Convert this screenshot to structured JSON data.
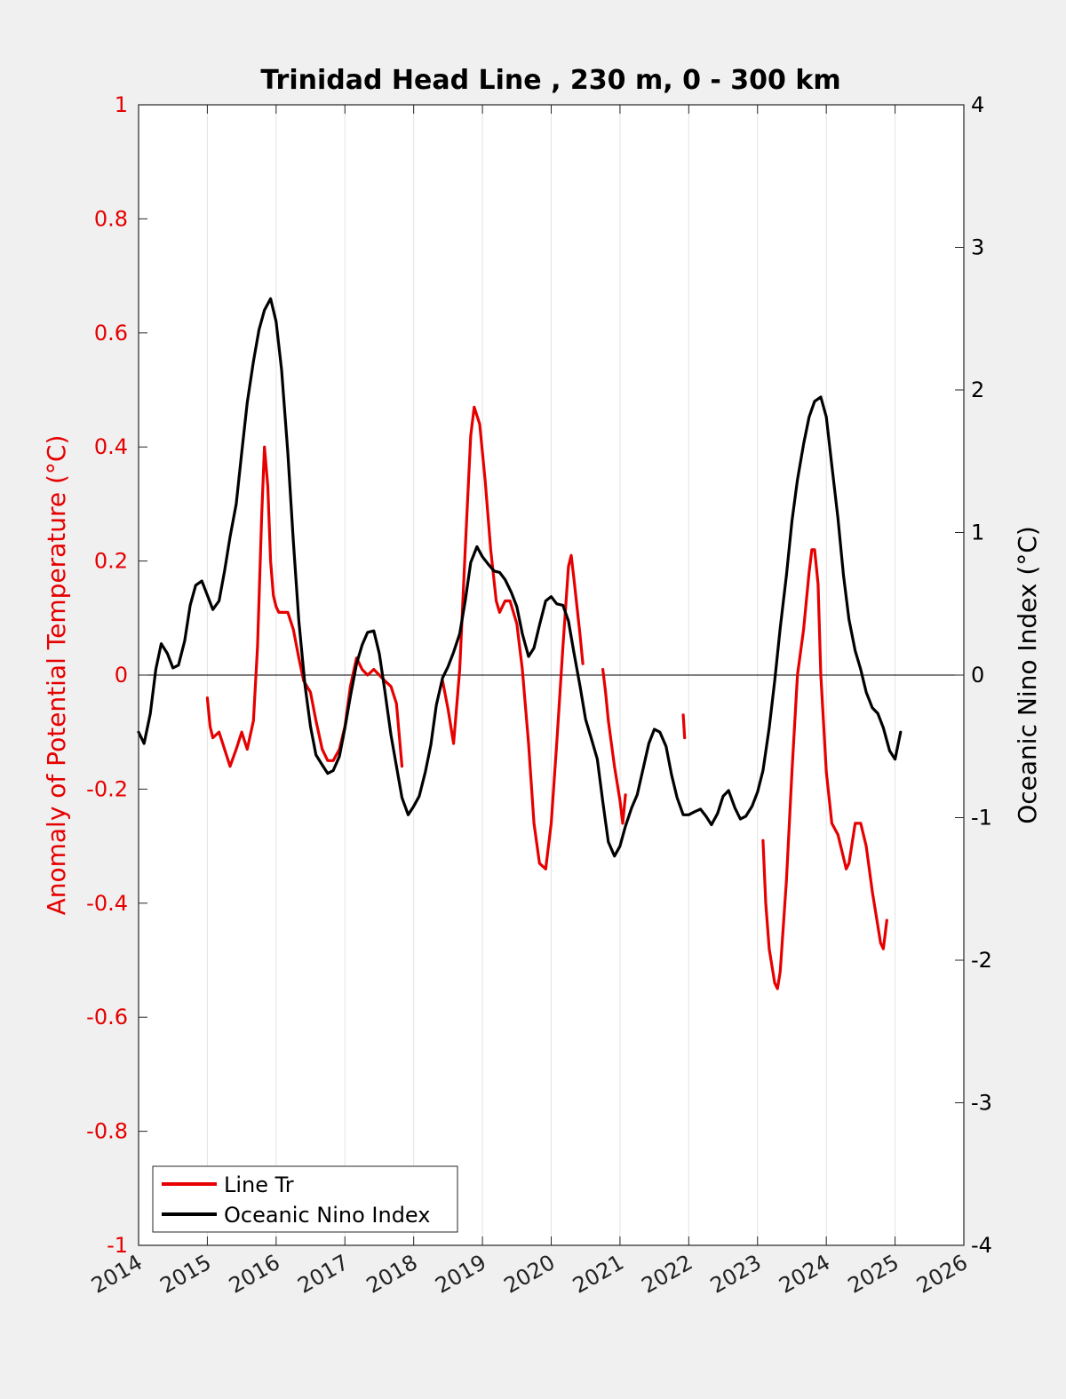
{
  "chart_data": {
    "type": "line",
    "title": "Trinidad Head Line , 230 m, 0 - 300 km",
    "xlabel": "",
    "ylabel_left": "Anomaly of Potential Temperature (°C)",
    "ylabel_right": "Oceanic Nino Index (°C)",
    "xlim": [
      2014,
      2026
    ],
    "ylim_left": [
      -1,
      1
    ],
    "ylim_right": [
      -4,
      4
    ],
    "x_ticks": [
      "2014",
      "2015",
      "2016",
      "2017",
      "2018",
      "2019",
      "2020",
      "2021",
      "2022",
      "2023",
      "2024",
      "2025",
      "2026"
    ],
    "y_ticks_left": [
      "1",
      "0.8",
      "0.6",
      "0.4",
      "0.2",
      "0",
      "-0.2",
      "-0.4",
      "-0.6",
      "-0.8",
      "-1"
    ],
    "y_ticks_right": [
      "4",
      "3",
      "2",
      "1",
      "0",
      "-1",
      "-2",
      "-3",
      "-4"
    ],
    "grid": "vertical",
    "legend_position": "bottom-left",
    "colors": {
      "line_tr": "#e60000",
      "oni": "#000000"
    },
    "series": [
      {
        "name": "Line Tr",
        "axis": "left",
        "segments": [
          [
            [
              2015.0,
              -0.04
            ],
            [
              2015.04,
              -0.09
            ],
            [
              2015.08,
              -0.11
            ],
            [
              2015.17,
              -0.1
            ],
            [
              2015.25,
              -0.13
            ],
            [
              2015.33,
              -0.16
            ],
            [
              2015.42,
              -0.13
            ],
            [
              2015.5,
              -0.1
            ],
            [
              2015.58,
              -0.13
            ],
            [
              2015.67,
              -0.08
            ],
            [
              2015.73,
              0.05
            ],
            [
              2015.79,
              0.28
            ],
            [
              2015.83,
              0.4
            ],
            [
              2015.88,
              0.33
            ],
            [
              2015.92,
              0.2
            ],
            [
              2015.96,
              0.14
            ],
            [
              2016.0,
              0.12
            ],
            [
              2016.04,
              0.11
            ],
            [
              2016.17,
              0.11
            ],
            [
              2016.25,
              0.08
            ],
            [
              2016.33,
              0.03
            ],
            [
              2016.4,
              -0.01
            ],
            [
              2016.5,
              -0.03
            ],
            [
              2016.58,
              -0.08
            ],
            [
              2016.67,
              -0.13
            ],
            [
              2016.75,
              -0.15
            ],
            [
              2016.83,
              -0.15
            ],
            [
              2016.92,
              -0.13
            ],
            [
              2017.0,
              -0.09
            ],
            [
              2017.08,
              -0.02
            ],
            [
              2017.17,
              0.03
            ],
            [
              2017.25,
              0.01
            ],
            [
              2017.33,
              0.0
            ],
            [
              2017.42,
              0.01
            ],
            [
              2017.5,
              0.0
            ],
            [
              2017.58,
              -0.01
            ],
            [
              2017.67,
              -0.02
            ],
            [
              2017.75,
              -0.05
            ],
            [
              2017.83,
              -0.16
            ]
          ],
          [
            [
              2018.42,
              -0.01
            ],
            [
              2018.5,
              -0.06
            ],
            [
              2018.58,
              -0.12
            ],
            [
              2018.67,
              0.01
            ],
            [
              2018.75,
              0.22
            ],
            [
              2018.83,
              0.42
            ],
            [
              2018.88,
              0.47
            ],
            [
              2018.96,
              0.44
            ],
            [
              2019.04,
              0.34
            ],
            [
              2019.12,
              0.22
            ],
            [
              2019.2,
              0.13
            ],
            [
              2019.25,
              0.11
            ],
            [
              2019.33,
              0.13
            ],
            [
              2019.4,
              0.13
            ],
            [
              2019.5,
              0.09
            ],
            [
              2019.58,
              0.01
            ],
            [
              2019.67,
              -0.12
            ],
            [
              2019.75,
              -0.26
            ],
            [
              2019.83,
              -0.33
            ],
            [
              2019.92,
              -0.34
            ],
            [
              2020.0,
              -0.26
            ],
            [
              2020.08,
              -0.12
            ],
            [
              2020.17,
              0.05
            ],
            [
              2020.25,
              0.19
            ],
            [
              2020.29,
              0.21
            ],
            [
              2020.33,
              0.17
            ],
            [
              2020.42,
              0.07
            ],
            [
              2020.46,
              0.02
            ]
          ],
          [
            [
              2020.75,
              0.01
            ],
            [
              2020.79,
              -0.03
            ],
            [
              2020.83,
              -0.08
            ],
            [
              2020.92,
              -0.16
            ],
            [
              2021.0,
              -0.22
            ],
            [
              2021.04,
              -0.26
            ],
            [
              2021.08,
              -0.21
            ]
          ],
          [
            [
              2021.92,
              -0.07
            ],
            [
              2021.94,
              -0.11
            ]
          ],
          [
            [
              2023.08,
              -0.29
            ],
            [
              2023.12,
              -0.4
            ],
            [
              2023.17,
              -0.48
            ],
            [
              2023.25,
              -0.54
            ],
            [
              2023.29,
              -0.55
            ],
            [
              2023.33,
              -0.52
            ],
            [
              2023.42,
              -0.36
            ],
            [
              2023.5,
              -0.17
            ],
            [
              2023.58,
              0.0
            ],
            [
              2023.67,
              0.08
            ],
            [
              2023.75,
              0.18
            ],
            [
              2023.79,
              0.22
            ],
            [
              2023.83,
              0.22
            ],
            [
              2023.88,
              0.16
            ],
            [
              2023.92,
              0.0
            ],
            [
              2024.0,
              -0.17
            ],
            [
              2024.08,
              -0.26
            ],
            [
              2024.17,
              -0.28
            ],
            [
              2024.25,
              -0.32
            ],
            [
              2024.29,
              -0.34
            ],
            [
              2024.33,
              -0.33
            ],
            [
              2024.42,
              -0.26
            ],
            [
              2024.5,
              -0.26
            ],
            [
              2024.58,
              -0.3
            ],
            [
              2024.67,
              -0.38
            ],
            [
              2024.75,
              -0.44
            ],
            [
              2024.79,
              -0.47
            ],
            [
              2024.83,
              -0.48
            ],
            [
              2024.88,
              -0.43
            ]
          ]
        ]
      },
      {
        "name": "Oceanic Nino Index",
        "axis": "right",
        "segments": [
          [
            [
              2014.0,
              -0.4
            ],
            [
              2014.08,
              -0.48
            ],
            [
              2014.17,
              -0.27
            ],
            [
              2014.25,
              0.04
            ],
            [
              2014.33,
              0.22
            ],
            [
              2014.42,
              0.15
            ],
            [
              2014.5,
              0.05
            ],
            [
              2014.58,
              0.07
            ],
            [
              2014.67,
              0.24
            ],
            [
              2014.75,
              0.49
            ],
            [
              2014.83,
              0.63
            ],
            [
              2014.92,
              0.66
            ],
            [
              2015.0,
              0.56
            ],
            [
              2015.08,
              0.46
            ],
            [
              2015.17,
              0.52
            ],
            [
              2015.25,
              0.73
            ],
            [
              2015.33,
              0.97
            ],
            [
              2015.42,
              1.2
            ],
            [
              2015.5,
              1.56
            ],
            [
              2015.58,
              1.91
            ],
            [
              2015.67,
              2.2
            ],
            [
              2015.75,
              2.42
            ],
            [
              2015.83,
              2.56
            ],
            [
              2015.92,
              2.64
            ],
            [
              2016.0,
              2.48
            ],
            [
              2016.08,
              2.14
            ],
            [
              2016.17,
              1.56
            ],
            [
              2016.25,
              0.94
            ],
            [
              2016.33,
              0.38
            ],
            [
              2016.42,
              -0.07
            ],
            [
              2016.5,
              -0.36
            ],
            [
              2016.58,
              -0.56
            ],
            [
              2016.67,
              -0.63
            ],
            [
              2016.75,
              -0.69
            ],
            [
              2016.83,
              -0.67
            ],
            [
              2016.92,
              -0.57
            ],
            [
              2017.0,
              -0.37
            ],
            [
              2017.08,
              -0.15
            ],
            [
              2017.17,
              0.08
            ],
            [
              2017.25,
              0.21
            ],
            [
              2017.33,
              0.3
            ],
            [
              2017.42,
              0.31
            ],
            [
              2017.5,
              0.15
            ],
            [
              2017.58,
              -0.11
            ],
            [
              2017.67,
              -0.42
            ],
            [
              2017.75,
              -0.64
            ],
            [
              2017.83,
              -0.86
            ],
            [
              2017.92,
              -0.98
            ],
            [
              2018.0,
              -0.92
            ],
            [
              2018.08,
              -0.85
            ],
            [
              2018.17,
              -0.68
            ],
            [
              2018.25,
              -0.49
            ],
            [
              2018.33,
              -0.21
            ],
            [
              2018.42,
              -0.02
            ],
            [
              2018.5,
              0.06
            ],
            [
              2018.58,
              0.16
            ],
            [
              2018.67,
              0.29
            ],
            [
              2018.75,
              0.52
            ],
            [
              2018.83,
              0.79
            ],
            [
              2018.92,
              0.9
            ],
            [
              2019.0,
              0.83
            ],
            [
              2019.08,
              0.78
            ],
            [
              2019.17,
              0.73
            ],
            [
              2019.25,
              0.72
            ],
            [
              2019.33,
              0.67
            ],
            [
              2019.42,
              0.58
            ],
            [
              2019.5,
              0.48
            ],
            [
              2019.58,
              0.29
            ],
            [
              2019.67,
              0.13
            ],
            [
              2019.75,
              0.19
            ],
            [
              2019.83,
              0.35
            ],
            [
              2019.92,
              0.52
            ],
            [
              2020.0,
              0.55
            ],
            [
              2020.08,
              0.5
            ],
            [
              2020.17,
              0.49
            ],
            [
              2020.25,
              0.38
            ],
            [
              2020.33,
              0.16
            ],
            [
              2020.42,
              -0.08
            ],
            [
              2020.5,
              -0.31
            ],
            [
              2020.58,
              -0.44
            ],
            [
              2020.67,
              -0.59
            ],
            [
              2020.75,
              -0.89
            ],
            [
              2020.83,
              -1.17
            ],
            [
              2020.92,
              -1.27
            ],
            [
              2021.0,
              -1.2
            ],
            [
              2021.08,
              -1.06
            ],
            [
              2021.17,
              -0.93
            ],
            [
              2021.25,
              -0.84
            ],
            [
              2021.33,
              -0.67
            ],
            [
              2021.42,
              -0.48
            ],
            [
              2021.5,
              -0.38
            ],
            [
              2021.58,
              -0.4
            ],
            [
              2021.67,
              -0.5
            ],
            [
              2021.75,
              -0.7
            ],
            [
              2021.83,
              -0.86
            ],
            [
              2021.92,
              -0.98
            ],
            [
              2022.0,
              -0.98
            ],
            [
              2022.08,
              -0.96
            ],
            [
              2022.17,
              -0.94
            ],
            [
              2022.25,
              -0.99
            ],
            [
              2022.33,
              -1.05
            ],
            [
              2022.42,
              -0.97
            ],
            [
              2022.5,
              -0.85
            ],
            [
              2022.58,
              -0.81
            ],
            [
              2022.67,
              -0.93
            ],
            [
              2022.75,
              -1.01
            ],
            [
              2022.83,
              -0.99
            ],
            [
              2022.92,
              -0.92
            ],
            [
              2023.0,
              -0.82
            ],
            [
              2023.08,
              -0.67
            ],
            [
              2023.17,
              -0.37
            ],
            [
              2023.25,
              -0.04
            ],
            [
              2023.33,
              0.33
            ],
            [
              2023.42,
              0.7
            ],
            [
              2023.5,
              1.08
            ],
            [
              2023.58,
              1.37
            ],
            [
              2023.67,
              1.62
            ],
            [
              2023.75,
              1.81
            ],
            [
              2023.83,
              1.92
            ],
            [
              2023.92,
              1.95
            ],
            [
              2024.0,
              1.81
            ],
            [
              2024.08,
              1.47
            ],
            [
              2024.17,
              1.1
            ],
            [
              2024.25,
              0.7
            ],
            [
              2024.33,
              0.39
            ],
            [
              2024.42,
              0.17
            ],
            [
              2024.5,
              0.04
            ],
            [
              2024.58,
              -0.12
            ],
            [
              2024.67,
              -0.23
            ],
            [
              2024.75,
              -0.27
            ],
            [
              2024.83,
              -0.37
            ],
            [
              2024.92,
              -0.53
            ],
            [
              2025.0,
              -0.59
            ],
            [
              2025.08,
              -0.4
            ]
          ]
        ]
      }
    ]
  }
}
